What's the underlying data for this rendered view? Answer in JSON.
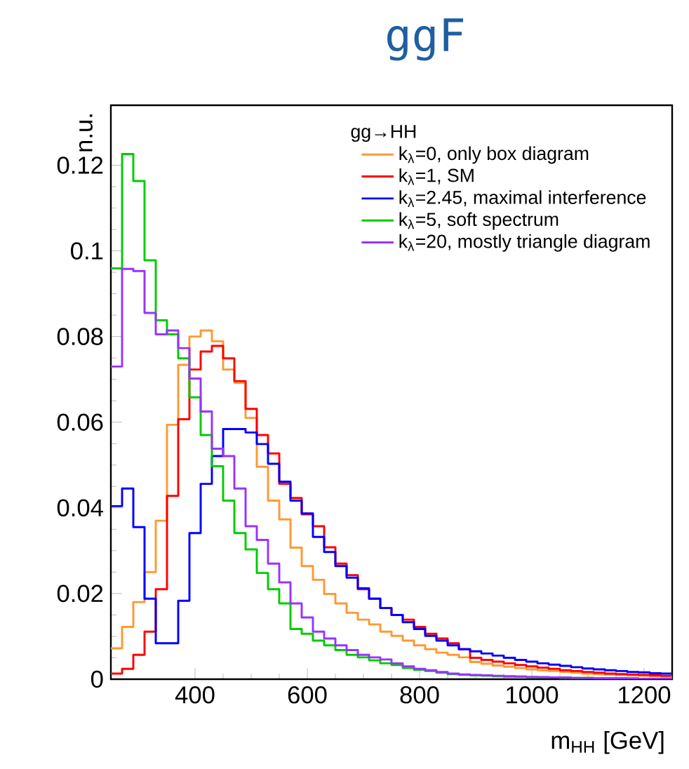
{
  "chart_data": {
    "type": "histogram",
    "title": "ggF",
    "xlabel": "m$_{HH}$ [GeV]",
    "ylabel": "n.u.",
    "legend_title": "gg→HH",
    "legend": "top right",
    "bins": [
      250,
      270,
      290,
      310,
      330,
      350,
      370,
      390,
      410,
      430,
      450,
      470,
      490,
      510,
      530,
      550,
      570,
      590,
      610,
      630,
      650,
      670,
      690,
      710,
      730,
      750,
      770,
      790,
      810,
      830,
      850,
      870,
      890,
      910,
      930,
      950,
      970,
      990,
      1010,
      1030,
      1050,
      1070,
      1090,
      1110,
      1130,
      1150,
      1170,
      1190,
      1210,
      1230,
      1250
    ],
    "xlim": [
      250,
      1250
    ],
    "ylim": [
      0,
      0.134
    ],
    "xticks": [
      400,
      600,
      800,
      1000,
      1200
    ],
    "yticks": [
      0,
      0.02,
      0.04,
      0.06,
      0.08,
      0.1,
      0.12
    ],
    "series": [
      {
        "name": "k$_{λ}$=0, only box diagram",
        "color": "#ff9933",
        "values": [
          0.0072,
          0.0122,
          0.018,
          0.025,
          0.037,
          0.0594,
          0.0734,
          0.08,
          0.0814,
          0.0789,
          0.0723,
          0.0692,
          0.061,
          0.0496,
          0.0417,
          0.0373,
          0.0307,
          0.0264,
          0.0232,
          0.0199,
          0.0177,
          0.0155,
          0.0139,
          0.0128,
          0.0111,
          0.0101,
          0.009,
          0.0079,
          0.007,
          0.0062,
          0.0057,
          0.0051,
          0.004,
          0.0036,
          0.0032,
          0.0029,
          0.0026,
          0.0023,
          0.0021,
          0.0019,
          0.0017,
          0.0015,
          0.0013,
          0.0012,
          0.0011,
          0.001,
          0.0009,
          0.0008,
          0.0007,
          0.0006
        ]
      },
      {
        "name": "k$_{λ}$=1, SM",
        "color": "#ff0000",
        "values": [
          0.0013,
          0.0024,
          0.0057,
          0.0111,
          0.021,
          0.0428,
          0.0607,
          0.0723,
          0.0765,
          0.0778,
          0.0749,
          0.0696,
          0.0631,
          0.057,
          0.0527,
          0.0456,
          0.0423,
          0.0385,
          0.0357,
          0.0308,
          0.027,
          0.0243,
          0.021,
          0.0188,
          0.0166,
          0.015,
          0.0139,
          0.0122,
          0.0106,
          0.0095,
          0.0084,
          0.007,
          0.005,
          0.0045,
          0.0041,
          0.0037,
          0.0033,
          0.003,
          0.0027,
          0.0024,
          0.0021,
          0.0019,
          0.0017,
          0.0015,
          0.0013,
          0.0012,
          0.0011,
          0.001,
          0.0009,
          0.0008
        ]
      },
      {
        "name": "k$_{λ}$=2.45, maximal interference",
        "color": "#0000ff",
        "values": [
          0.0404,
          0.0445,
          0.0355,
          0.0188,
          0.0084,
          0.0084,
          0.0183,
          0.0341,
          0.0456,
          0.0521,
          0.0584,
          0.0584,
          0.0576,
          0.0549,
          0.0503,
          0.0461,
          0.0417,
          0.0387,
          0.0332,
          0.0297,
          0.0264,
          0.0237,
          0.0212,
          0.0188,
          0.0166,
          0.015,
          0.0133,
          0.0117,
          0.0101,
          0.009,
          0.0079,
          0.007,
          0.0065,
          0.006,
          0.0055,
          0.005,
          0.0045,
          0.0041,
          0.0037,
          0.0034,
          0.0031,
          0.0028,
          0.0025,
          0.0023,
          0.0021,
          0.0019,
          0.0017,
          0.0016,
          0.0014,
          0.0013
        ]
      },
      {
        "name": "k$_{λ}$=5, soft spectrum",
        "color": "#00cc00",
        "values": [
          0.0959,
          0.1226,
          0.1163,
          0.0978,
          0.0838,
          0.0805,
          0.0749,
          0.0658,
          0.057,
          0.0497,
          0.0417,
          0.0341,
          0.0303,
          0.0248,
          0.021,
          0.0177,
          0.0117,
          0.0106,
          0.009,
          0.0079,
          0.0068,
          0.0057,
          0.0051,
          0.0044,
          0.0037,
          0.0033,
          0.0026,
          0.0022,
          0.0019,
          0.0015,
          0.0012,
          0.001,
          0.0009,
          0.0008,
          0.0007,
          0.0006,
          0.0006,
          0.0005,
          0.0004,
          0.0004,
          0.0003,
          0.0003,
          0.0003,
          0.0002,
          0.0002,
          0.0002,
          0.0001,
          0.0001,
          0.0001,
          0.0001
        ]
      },
      {
        "name": "k$_{λ}$=20, mostly triangle diagram",
        "color": "#9933ff",
        "values": [
          0.073,
          0.0958,
          0.0953,
          0.0855,
          0.0805,
          0.0814,
          0.0773,
          0.0702,
          0.0625,
          0.0538,
          0.0521,
          0.0445,
          0.0357,
          0.0325,
          0.027,
          0.0226,
          0.0177,
          0.0144,
          0.0111,
          0.0095,
          0.0079,
          0.0068,
          0.0057,
          0.0051,
          0.0046,
          0.0037,
          0.003,
          0.0024,
          0.0021,
          0.0017,
          0.0013,
          0.0011,
          0.001,
          0.0009,
          0.0008,
          0.0007,
          0.0006,
          0.0005,
          0.0005,
          0.0004,
          0.0004,
          0.0003,
          0.0003,
          0.0002,
          0.0002,
          0.0002,
          0.0002,
          0.0001,
          0.0001,
          0.0001
        ]
      }
    ]
  }
}
